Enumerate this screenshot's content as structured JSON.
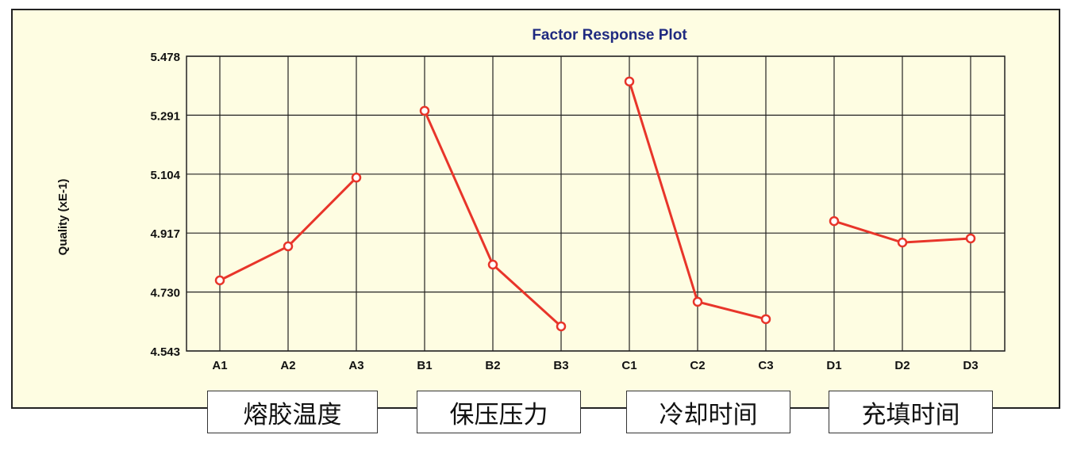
{
  "chart_data": {
    "type": "line",
    "title": "Factor Response Plot",
    "ylabel": "Quality (xE-1)",
    "xlabel": "",
    "ylim": [
      4.543,
      5.478
    ],
    "yticks": [
      "5.478",
      "5.291",
      "5.104",
      "4.917",
      "4.730",
      "4.543"
    ],
    "categories": [
      "A1",
      "A2",
      "A3",
      "B1",
      "B2",
      "B3",
      "C1",
      "C2",
      "C3",
      "D1",
      "D2",
      "D3"
    ],
    "series": [
      {
        "group": "A",
        "x": [
          "A1",
          "A2",
          "A3"
        ],
        "values": [
          4.767,
          4.875,
          5.093
        ]
      },
      {
        "group": "B",
        "x": [
          "B1",
          "B2",
          "B3"
        ],
        "values": [
          5.305,
          4.817,
          4.621
        ]
      },
      {
        "group": "C",
        "x": [
          "C1",
          "C2",
          "C3"
        ],
        "values": [
          5.398,
          4.699,
          4.644
        ]
      },
      {
        "group": "D",
        "x": [
          "D1",
          "D2",
          "D3"
        ],
        "values": [
          4.955,
          4.887,
          4.9
        ]
      }
    ],
    "grid": true,
    "line_color": "#e8352a",
    "title_color": "#1f2a80",
    "background_color": "#fefde2"
  },
  "factor_labels": [
    "熔胶温度",
    "保压压力",
    "冷却时间",
    "充填时间"
  ]
}
